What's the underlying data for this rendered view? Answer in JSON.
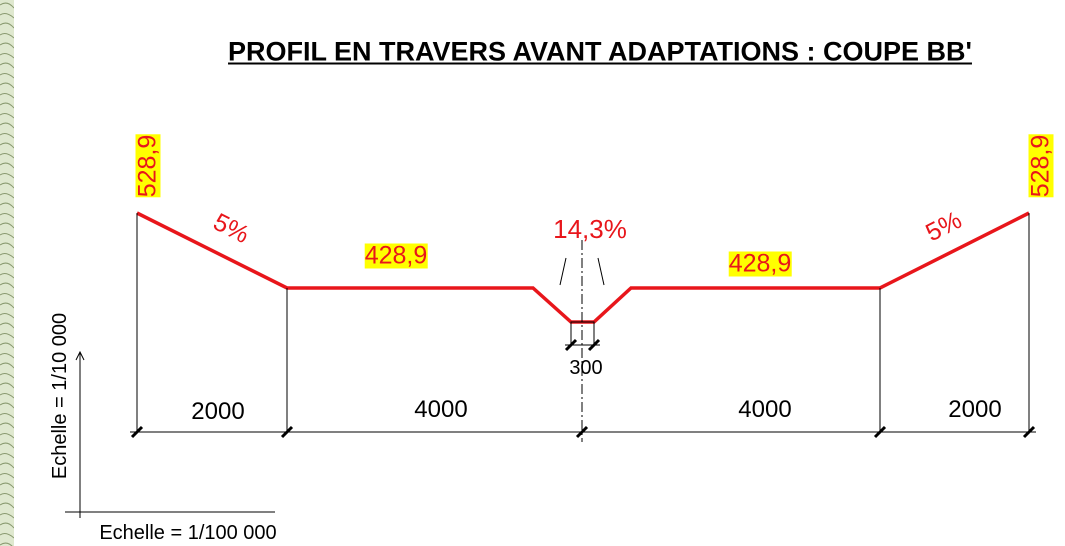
{
  "title": "PROFIL EN TRAVERS AVANT ADAPTATIONS : COUPE BB'",
  "elevations": {
    "left": "528,9",
    "right": "528,9",
    "platform_left": "428,9",
    "platform_right": "428,9"
  },
  "slopes": {
    "left": "5%",
    "ditch": "14,3%",
    "right": "5%"
  },
  "dimensions": [
    "2000",
    "4000",
    "300",
    "4000",
    "2000"
  ],
  "scales": {
    "vertical": "Echelle = 1/10 000",
    "horizontal": "Echelle = 1/100 000"
  }
}
